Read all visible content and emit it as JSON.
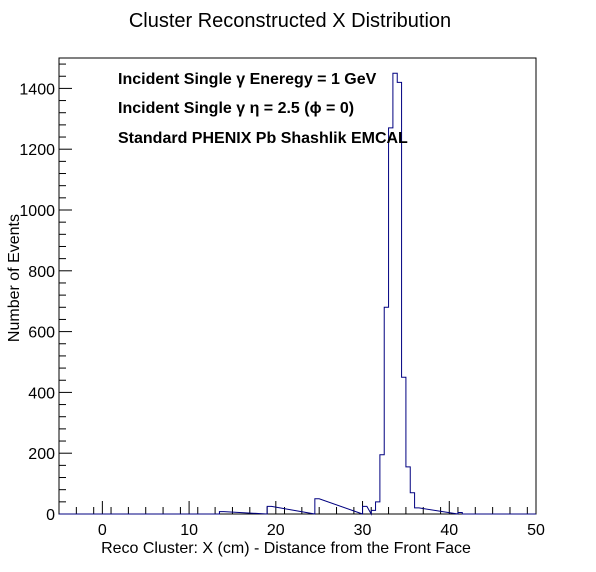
{
  "chart_data": {
    "type": "histogram",
    "title": "Cluster Reconstructed X Distribution",
    "xlabel": "Reco Cluster: X (cm) - Distance from the Front Face",
    "ylabel": "Number of Events",
    "xlim": [
      -5,
      50
    ],
    "ylim": [
      0,
      1500
    ],
    "bin_width": 0.5,
    "x_ticks": [
      0,
      10,
      20,
      30,
      40,
      50
    ],
    "y_ticks": [
      0,
      200,
      400,
      600,
      800,
      1000,
      1200,
      1400
    ],
    "grid": false,
    "annotations": [
      "Incident Single   γ Eneregy = 1 GeV",
      "Incident Single   γ  η = 2.5 (ϕ = 0)",
      "Standard PHENIX Pb Shashlik EMCAL"
    ],
    "bins": [
      {
        "x": 13.5,
        "y": 8
      },
      {
        "x": 19.0,
        "y": 25
      },
      {
        "x": 24.5,
        "y": 50
      },
      {
        "x": 30.0,
        "y": 25
      },
      {
        "x": 31.0,
        "y": 12
      },
      {
        "x": 31.5,
        "y": 40
      },
      {
        "x": 32.0,
        "y": 195
      },
      {
        "x": 32.5,
        "y": 680
      },
      {
        "x": 33.0,
        "y": 1270
      },
      {
        "x": 33.5,
        "y": 1450
      },
      {
        "x": 34.0,
        "y": 1420
      },
      {
        "x": 34.5,
        "y": 450
      },
      {
        "x": 35.0,
        "y": 155
      },
      {
        "x": 35.5,
        "y": 70
      },
      {
        "x": 36.0,
        "y": 20
      },
      {
        "x": 41.0,
        "y": 5
      }
    ],
    "line_color": "#000080"
  }
}
